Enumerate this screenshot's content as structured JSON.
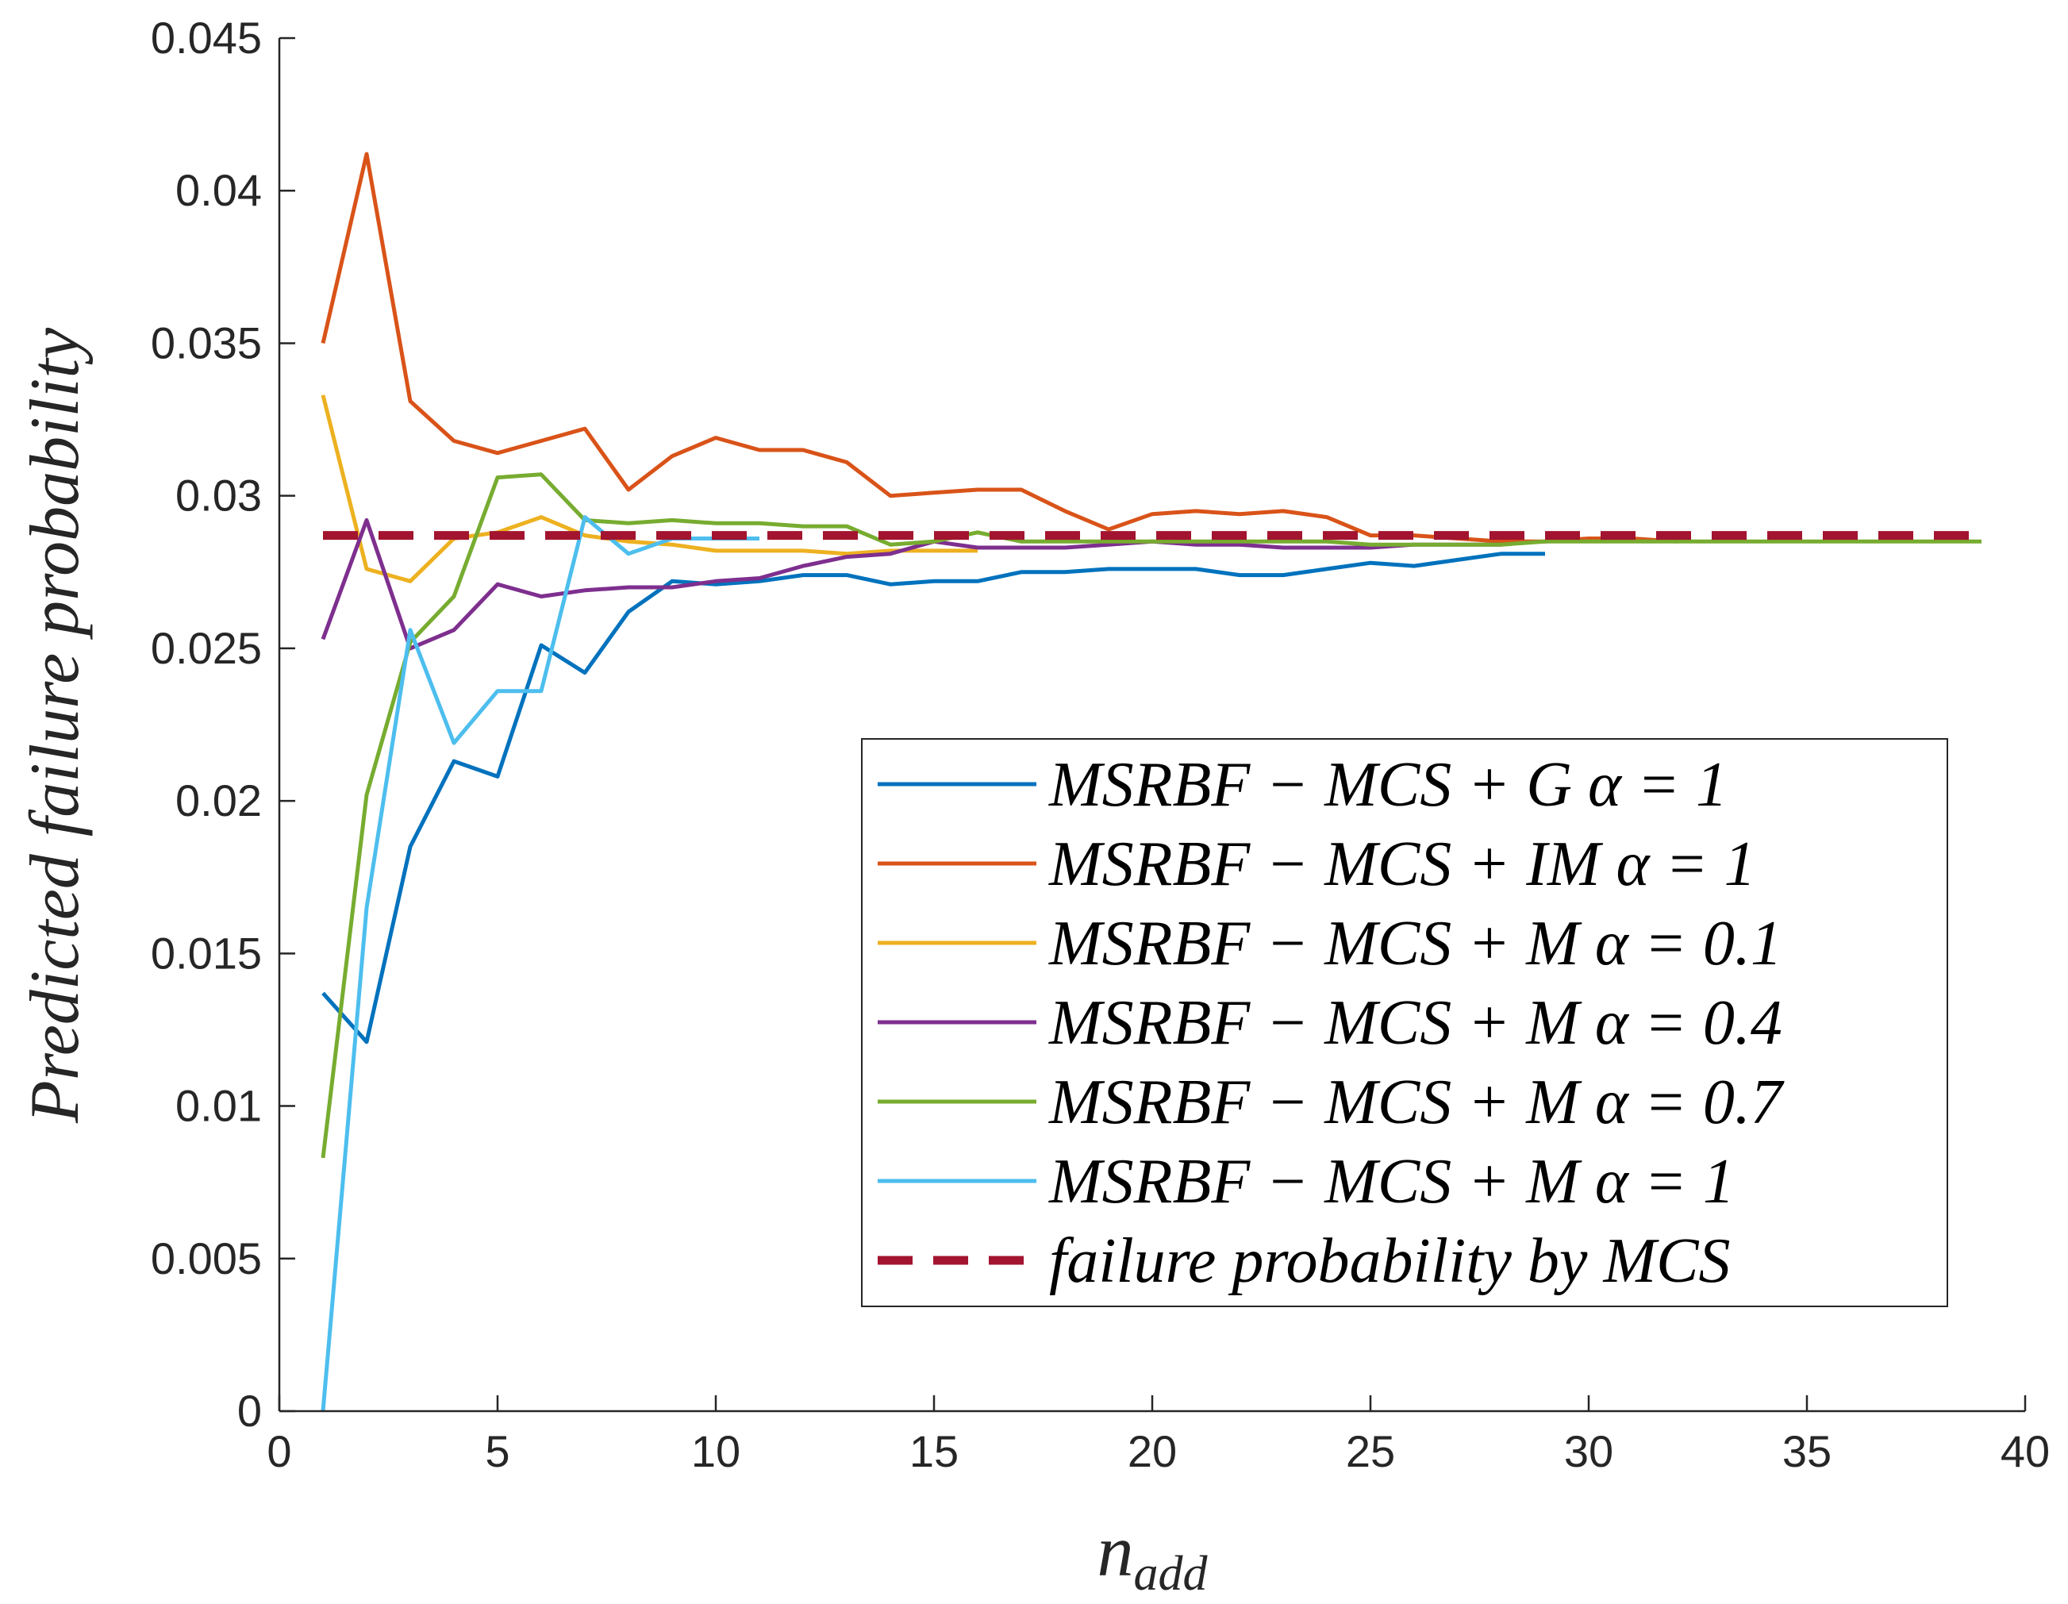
{
  "chart_data": {
    "type": "line",
    "title": "",
    "xlabel": "n_add",
    "xlabel_main": "n",
    "xlabel_sub": "add",
    "ylabel": "Predicted failure probability",
    "xlim": [
      0,
      40
    ],
    "ylim": [
      0,
      0.045
    ],
    "xticks": [
      0,
      5,
      10,
      15,
      20,
      25,
      30,
      35,
      40
    ],
    "xtick_labels": [
      "0",
      "5",
      "10",
      "15",
      "20",
      "25",
      "30",
      "35",
      "40"
    ],
    "yticks": [
      0,
      0.005,
      0.01,
      0.015,
      0.02,
      0.025,
      0.03,
      0.035,
      0.04,
      0.045
    ],
    "ytick_labels": [
      "0",
      "0.005",
      "0.01",
      "0.015",
      "0.02",
      "0.025",
      "0.03",
      "0.035",
      "0.04",
      "0.045"
    ],
    "grid": false,
    "legend_position": "lower-right",
    "series": [
      {
        "name": "MSRBF − MCS + G α = 1",
        "color": "#0072BD",
        "x": [
          1,
          2,
          3,
          4,
          5,
          6,
          7,
          8,
          9,
          10,
          11,
          12,
          13,
          14,
          15,
          16,
          17,
          18,
          19,
          20,
          21,
          22,
          23,
          24,
          25,
          26,
          27,
          28,
          29
        ],
        "values": [
          0.0137,
          0.0121,
          0.0185,
          0.0213,
          0.0208,
          0.0251,
          0.0242,
          0.0262,
          0.0272,
          0.0271,
          0.0272,
          0.0274,
          0.0274,
          0.0271,
          0.0272,
          0.0272,
          0.0275,
          0.0275,
          0.0276,
          0.0276,
          0.0276,
          0.0274,
          0.0274,
          0.0276,
          0.0278,
          0.0277,
          0.0279,
          0.0281,
          0.0281
        ]
      },
      {
        "name": "MSRBF − MCS + IM α = 1",
        "color": "#D95319",
        "x": [
          1,
          2,
          3,
          4,
          5,
          6,
          7,
          8,
          9,
          10,
          11,
          12,
          13,
          14,
          15,
          16,
          17,
          18,
          19,
          20,
          21,
          22,
          23,
          24,
          25,
          26,
          27,
          28,
          29,
          30,
          31,
          32
        ],
        "values": [
          0.035,
          0.0412,
          0.0331,
          0.0318,
          0.0314,
          0.0318,
          0.0322,
          0.0302,
          0.0313,
          0.0319,
          0.0315,
          0.0315,
          0.0311,
          0.03,
          0.0301,
          0.0302,
          0.0302,
          0.0295,
          0.0289,
          0.0294,
          0.0295,
          0.0294,
          0.0295,
          0.0293,
          0.0287,
          0.0287,
          0.0286,
          0.0285,
          0.0285,
          0.0286,
          0.0286,
          0.0285
        ]
      },
      {
        "name": "MSRBF − MCS + M α = 0.1",
        "color": "#EDB120",
        "x": [
          1,
          2,
          3,
          4,
          5,
          6,
          7,
          8,
          9,
          10,
          11,
          12,
          13,
          14,
          15,
          16
        ],
        "values": [
          0.0333,
          0.0276,
          0.0272,
          0.0286,
          0.0288,
          0.0293,
          0.0287,
          0.0285,
          0.0284,
          0.0282,
          0.0282,
          0.0282,
          0.0281,
          0.0282,
          0.0282,
          0.0282
        ]
      },
      {
        "name": "MSRBF − MCS + M α = 0.4",
        "color": "#7E2F8E",
        "x": [
          1,
          2,
          3,
          4,
          5,
          6,
          7,
          8,
          9,
          10,
          11,
          12,
          13,
          14,
          15,
          16,
          17,
          18,
          19,
          20,
          21,
          22,
          23,
          24,
          25,
          26,
          27,
          28
        ],
        "values": [
          0.0253,
          0.0292,
          0.025,
          0.0256,
          0.0271,
          0.0267,
          0.0269,
          0.027,
          0.027,
          0.0272,
          0.0273,
          0.0277,
          0.028,
          0.0281,
          0.0285,
          0.0283,
          0.0283,
          0.0283,
          0.0284,
          0.0285,
          0.0284,
          0.0284,
          0.0283,
          0.0283,
          0.0283,
          0.0284,
          0.0284,
          0.0284
        ]
      },
      {
        "name": "MSRBF − MCS + M α = 0.7",
        "color": "#77AC30",
        "x": [
          1,
          2,
          3,
          4,
          5,
          6,
          7,
          8,
          9,
          10,
          11,
          12,
          13,
          14,
          15,
          16,
          17,
          18,
          19,
          20,
          21,
          22,
          23,
          24,
          25,
          26,
          27,
          28,
          29,
          30,
          31,
          32,
          33,
          34,
          35,
          36,
          37,
          38,
          39
        ],
        "values": [
          0.0083,
          0.0202,
          0.0252,
          0.0267,
          0.0306,
          0.0307,
          0.0292,
          0.0291,
          0.0292,
          0.0291,
          0.0291,
          0.029,
          0.029,
          0.0284,
          0.0285,
          0.0288,
          0.0285,
          0.0285,
          0.0285,
          0.0285,
          0.0285,
          0.0285,
          0.0285,
          0.0285,
          0.0284,
          0.0284,
          0.0284,
          0.0284,
          0.0285,
          0.0285,
          0.0285,
          0.0285,
          0.0285,
          0.0285,
          0.0285,
          0.0285,
          0.0285,
          0.0285,
          0.0285
        ]
      },
      {
        "name": "MSRBF − MCS + M α = 1",
        "color": "#4DBEEE",
        "x": [
          1,
          2,
          3,
          4,
          5,
          6,
          7,
          8,
          9,
          10,
          11
        ],
        "values": [
          0.0,
          0.0165,
          0.0256,
          0.0219,
          0.0236,
          0.0236,
          0.0293,
          0.0281,
          0.0286,
          0.0286,
          0.0286
        ]
      }
    ],
    "reference_line": {
      "name": "failure probability by MCS",
      "color": "#A2142F",
      "style": "dashed",
      "x": [
        1,
        39
      ],
      "value": 0.0287
    },
    "legend_entries": [
      {
        "main": "MSRBF − MCS + G ",
        "alpha": "α = 1"
      },
      {
        "main": "MSRBF − MCS + IM ",
        "alpha": "α = 1"
      },
      {
        "main": "MSRBF − MCS + M ",
        "alpha": "α = 0.1"
      },
      {
        "main": "MSRBF − MCS + M ",
        "alpha": "α = 0.4"
      },
      {
        "main": "MSRBF − MCS + M ",
        "alpha": "α = 0.7"
      },
      {
        "main": "MSRBF − MCS + M ",
        "alpha": "α = 1"
      },
      {
        "main": "failure probability by MCS",
        "alpha": ""
      }
    ]
  }
}
